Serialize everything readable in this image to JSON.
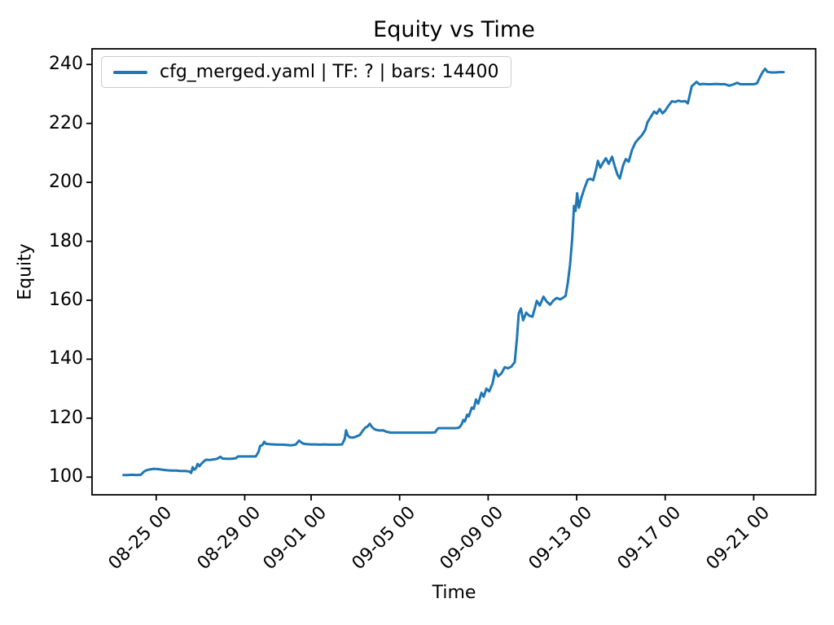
{
  "figure": {
    "background": "#ffffff",
    "frame_color": "#000000"
  },
  "chart_data": {
    "type": "line",
    "title": "Equity vs Time",
    "xlabel": "Time",
    "ylabel": "Equity",
    "grid": false,
    "legend": {
      "position": "upper left",
      "entries": [
        "cfg_merged.yaml | TF: ? | bars: 14400"
      ]
    },
    "x_unit": "days since 08-23 00:00",
    "xlim": [
      -0.9,
      31.8
    ],
    "ylim": [
      94.0,
      245.3
    ],
    "yticks": [
      100,
      120,
      140,
      160,
      180,
      200,
      220,
      240
    ],
    "xticks": [
      {
        "label": "08-25 00",
        "day": 2
      },
      {
        "label": "08-29 00",
        "day": 6
      },
      {
        "label": "09-01 00",
        "day": 9
      },
      {
        "label": "09-05 00",
        "day": 13
      },
      {
        "label": "09-09 00",
        "day": 17
      },
      {
        "label": "09-13 00",
        "day": 21
      },
      {
        "label": "09-17 00",
        "day": 25
      },
      {
        "label": "09-21 00",
        "day": 29
      }
    ],
    "series": [
      {
        "name": "cfg_merged.yaml | TF: ? | bars: 14400",
        "color": "#1f77b4",
        "points": [
          [
            0.52,
            100.7
          ],
          [
            0.7,
            100.7
          ],
          [
            0.9,
            100.8
          ],
          [
            1.1,
            100.7
          ],
          [
            1.3,
            100.8
          ],
          [
            1.45,
            101.9
          ],
          [
            1.55,
            102.3
          ],
          [
            1.7,
            102.6
          ],
          [
            1.9,
            102.8
          ],
          [
            2.1,
            102.7
          ],
          [
            2.3,
            102.5
          ],
          [
            2.5,
            102.3
          ],
          [
            2.7,
            102.2
          ],
          [
            2.9,
            102.2
          ],
          [
            3.1,
            102.1
          ],
          [
            3.3,
            102.1
          ],
          [
            3.5,
            101.9
          ],
          [
            3.58,
            101.4
          ],
          [
            3.65,
            103.4
          ],
          [
            3.72,
            102.5
          ],
          [
            3.8,
            103.0
          ],
          [
            3.87,
            104.5
          ],
          [
            3.95,
            103.7
          ],
          [
            4.05,
            104.6
          ],
          [
            4.15,
            105.3
          ],
          [
            4.25,
            105.9
          ],
          [
            4.4,
            105.8
          ],
          [
            4.6,
            106.0
          ],
          [
            4.75,
            106.2
          ],
          [
            4.9,
            106.9
          ],
          [
            5.0,
            106.3
          ],
          [
            5.2,
            106.2
          ],
          [
            5.4,
            106.2
          ],
          [
            5.6,
            106.4
          ],
          [
            5.7,
            107.0
          ],
          [
            5.9,
            107.0
          ],
          [
            6.1,
            107.0
          ],
          [
            6.3,
            107.0
          ],
          [
            6.5,
            107.0
          ],
          [
            6.62,
            108.5
          ],
          [
            6.7,
            110.6
          ],
          [
            6.8,
            110.9
          ],
          [
            6.88,
            112.0
          ],
          [
            6.95,
            111.3
          ],
          [
            7.1,
            111.2
          ],
          [
            7.3,
            111.1
          ],
          [
            7.5,
            111.0
          ],
          [
            7.7,
            111.0
          ],
          [
            7.9,
            110.9
          ],
          [
            8.1,
            110.8
          ],
          [
            8.3,
            111.0
          ],
          [
            8.45,
            112.4
          ],
          [
            8.55,
            111.8
          ],
          [
            8.65,
            111.3
          ],
          [
            8.8,
            111.2
          ],
          [
            9.0,
            111.1
          ],
          [
            9.2,
            111.1
          ],
          [
            9.4,
            111.0
          ],
          [
            9.6,
            111.1
          ],
          [
            9.8,
            111.0
          ],
          [
            10.0,
            111.0
          ],
          [
            10.2,
            111.0
          ],
          [
            10.4,
            111.1
          ],
          [
            10.52,
            113.0
          ],
          [
            10.58,
            115.9
          ],
          [
            10.65,
            114.2
          ],
          [
            10.75,
            113.5
          ],
          [
            10.9,
            113.4
          ],
          [
            11.05,
            113.8
          ],
          [
            11.2,
            114.3
          ],
          [
            11.35,
            115.9
          ],
          [
            11.45,
            116.8
          ],
          [
            11.55,
            117.2
          ],
          [
            11.65,
            118.1
          ],
          [
            11.75,
            117.0
          ],
          [
            11.85,
            116.3
          ],
          [
            11.95,
            116.0
          ],
          [
            12.1,
            115.8
          ],
          [
            12.25,
            115.9
          ],
          [
            12.4,
            115.4
          ],
          [
            12.6,
            115.1
          ],
          [
            12.9,
            115.1
          ],
          [
            13.2,
            115.1
          ],
          [
            13.5,
            115.1
          ],
          [
            13.8,
            115.1
          ],
          [
            14.1,
            115.1
          ],
          [
            14.4,
            115.1
          ],
          [
            14.6,
            115.2
          ],
          [
            14.68,
            116.0
          ],
          [
            14.75,
            116.6
          ],
          [
            15.0,
            116.6
          ],
          [
            15.3,
            116.6
          ],
          [
            15.55,
            116.6
          ],
          [
            15.7,
            116.8
          ],
          [
            15.8,
            117.9
          ],
          [
            15.88,
            119.4
          ],
          [
            15.95,
            118.9
          ],
          [
            16.05,
            121.2
          ],
          [
            16.12,
            120.6
          ],
          [
            16.26,
            123.6
          ],
          [
            16.35,
            123.2
          ],
          [
            16.45,
            126.3
          ],
          [
            16.55,
            124.9
          ],
          [
            16.7,
            128.6
          ],
          [
            16.8,
            127.3
          ],
          [
            16.92,
            130.0
          ],
          [
            17.05,
            129.1
          ],
          [
            17.2,
            131.8
          ],
          [
            17.32,
            136.3
          ],
          [
            17.45,
            134.2
          ],
          [
            17.6,
            135.2
          ],
          [
            17.75,
            137.3
          ],
          [
            17.9,
            136.9
          ],
          [
            18.05,
            137.5
          ],
          [
            18.2,
            139.0
          ],
          [
            18.3,
            147.0
          ],
          [
            18.38,
            155.5
          ],
          [
            18.48,
            157.2
          ],
          [
            18.58,
            153.2
          ],
          [
            18.72,
            155.8
          ],
          [
            18.85,
            154.8
          ],
          [
            19.0,
            154.4
          ],
          [
            19.1,
            157.0
          ],
          [
            19.2,
            159.8
          ],
          [
            19.33,
            158.2
          ],
          [
            19.5,
            161.2
          ],
          [
            19.65,
            159.5
          ],
          [
            19.8,
            158.5
          ],
          [
            19.95,
            159.9
          ],
          [
            20.1,
            160.8
          ],
          [
            20.25,
            160.3
          ],
          [
            20.4,
            160.9
          ],
          [
            20.5,
            161.5
          ],
          [
            20.6,
            166.0
          ],
          [
            20.7,
            172.0
          ],
          [
            20.8,
            181.0
          ],
          [
            20.88,
            192.0
          ],
          [
            20.95,
            190.3
          ],
          [
            21.02,
            196.3
          ],
          [
            21.1,
            191.4
          ],
          [
            21.2,
            194.5
          ],
          [
            21.35,
            198.0
          ],
          [
            21.5,
            200.9
          ],
          [
            21.62,
            201.2
          ],
          [
            21.75,
            200.7
          ],
          [
            21.88,
            204.5
          ],
          [
            21.96,
            207.3
          ],
          [
            22.07,
            205.0
          ],
          [
            22.2,
            206.8
          ],
          [
            22.32,
            208.2
          ],
          [
            22.45,
            206.3
          ],
          [
            22.6,
            208.7
          ],
          [
            22.72,
            205.5
          ],
          [
            22.85,
            202.5
          ],
          [
            22.95,
            201.3
          ],
          [
            23.1,
            205.8
          ],
          [
            23.22,
            207.9
          ],
          [
            23.35,
            207.0
          ],
          [
            23.5,
            211.0
          ],
          [
            23.65,
            213.5
          ],
          [
            23.8,
            214.8
          ],
          [
            23.95,
            216.0
          ],
          [
            24.1,
            217.8
          ],
          [
            24.2,
            220.4
          ],
          [
            24.35,
            222.2
          ],
          [
            24.5,
            224.0
          ],
          [
            24.62,
            223.3
          ],
          [
            24.75,
            224.9
          ],
          [
            24.88,
            223.4
          ],
          [
            25.0,
            224.3
          ],
          [
            25.15,
            226.0
          ],
          [
            25.3,
            227.5
          ],
          [
            25.45,
            227.3
          ],
          [
            25.6,
            227.7
          ],
          [
            25.75,
            227.4
          ],
          [
            25.9,
            227.6
          ],
          [
            26.02,
            226.8
          ],
          [
            26.12,
            230.0
          ],
          [
            26.2,
            232.6
          ],
          [
            26.32,
            233.4
          ],
          [
            26.42,
            234.1
          ],
          [
            26.55,
            233.2
          ],
          [
            26.7,
            233.4
          ],
          [
            26.9,
            233.3
          ],
          [
            27.1,
            233.3
          ],
          [
            27.3,
            233.4
          ],
          [
            27.5,
            233.3
          ],
          [
            27.7,
            233.3
          ],
          [
            27.9,
            232.8
          ],
          [
            28.1,
            233.3
          ],
          [
            28.25,
            233.8
          ],
          [
            28.4,
            233.3
          ],
          [
            28.6,
            233.3
          ],
          [
            28.8,
            233.3
          ],
          [
            29.0,
            233.3
          ],
          [
            29.15,
            233.6
          ],
          [
            29.3,
            236.0
          ],
          [
            29.42,
            237.6
          ],
          [
            29.52,
            238.5
          ],
          [
            29.62,
            237.5
          ],
          [
            29.8,
            237.3
          ],
          [
            30.0,
            237.3
          ],
          [
            30.15,
            237.4
          ],
          [
            30.35,
            237.4
          ]
        ]
      }
    ]
  }
}
